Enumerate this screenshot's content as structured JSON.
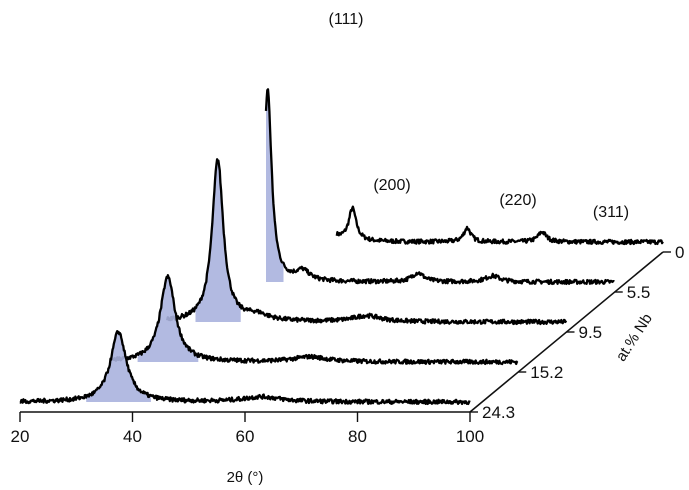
{
  "chart_data": {
    "type": "line",
    "title": "",
    "xlabel": "2θ (°)",
    "zlabel": "at.% Nb",
    "xlim": [
      20,
      100
    ],
    "x_ticks": [
      "20",
      "40",
      "60",
      "80",
      "100"
    ],
    "z_ticks": [
      "0",
      "5.5",
      "9.5",
      "15.2",
      "24.3"
    ],
    "peak_labels": [
      "(111)",
      "(200)",
      "(220)",
      "(311)"
    ],
    "highlight_color": "#aab3de",
    "line_color": "#000000",
    "series": [
      {
        "composition": "0",
        "x_range": [
          42,
          100
        ],
        "peaks": [
          {
            "x": 38.5,
            "height": 205,
            "width": 1.2
          },
          {
            "x": 44.8,
            "height": 32,
            "width": 1.6
          },
          {
            "x": 65.2,
            "height": 14,
            "width": 1.5
          },
          {
            "x": 78.5,
            "height": 10,
            "width": 1.8
          }
        ]
      },
      {
        "composition": "5.5",
        "x_range": [
          38,
          100
        ],
        "peaks": [
          {
            "x": 38.3,
            "height": 192,
            "width": 1.7
          },
          {
            "x": 44.5,
            "height": 10,
            "width": 3.0
          },
          {
            "x": 65.0,
            "height": 9,
            "width": 2.5
          },
          {
            "x": 78.3,
            "height": 6,
            "width": 3.0
          }
        ]
      },
      {
        "composition": "9.5",
        "x_range": [
          29,
          100
        ],
        "peaks": [
          {
            "x": 38.0,
            "height": 162,
            "width": 2.4
          },
          {
            "x": 45,
            "height": 6,
            "width": 5.0
          },
          {
            "x": 64.5,
            "height": 6,
            "width": 6.0
          }
        ]
      },
      {
        "composition": "15.2",
        "x_range": [
          28,
          100
        ],
        "peaks": [
          {
            "x": 37.7,
            "height": 85,
            "width": 3.2
          },
          {
            "x": 63.0,
            "height": 5,
            "width": 7.0
          }
        ]
      },
      {
        "composition": "24.3",
        "x_range": [
          20,
          100
        ],
        "peaks": [
          {
            "x": 37.5,
            "height": 70,
            "width": 3.4
          },
          {
            "x": 63.0,
            "height": 5,
            "width": 8.0
          }
        ]
      }
    ]
  }
}
